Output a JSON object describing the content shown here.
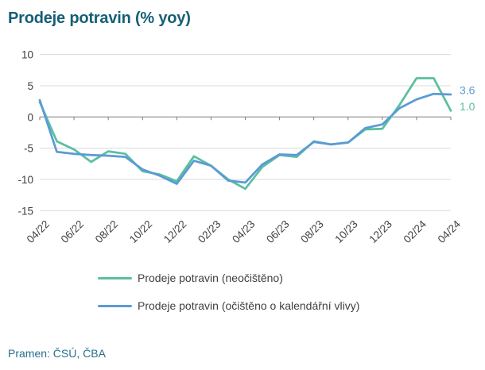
{
  "title": "Prodeje potravin (% yoy)",
  "source": "Pramen: ČSÚ, ČBA",
  "colors": {
    "title": "#155F76",
    "source": "#27708C",
    "green": "#5BBFA0",
    "blue": "#5B9BD5",
    "gridline": "#D9D9D9",
    "axis": "#7F7F7F",
    "tick_label": "#404040"
  },
  "legend": {
    "items": [
      {
        "label": "Prodeje potravin (neočištěno)",
        "color_key": "green"
      },
      {
        "label": "Prodeje potravin (očištěno o kalendářní vlivy)",
        "color_key": "blue"
      }
    ]
  },
  "chart_data": {
    "type": "line",
    "title": "Prodeje potravin (% yoy)",
    "x": [
      "04/22",
      "05/22",
      "06/22",
      "07/22",
      "08/22",
      "09/22",
      "10/22",
      "11/22",
      "12/22",
      "01/23",
      "02/23",
      "03/23",
      "04/23",
      "05/23",
      "06/23",
      "07/23",
      "08/23",
      "09/23",
      "10/23",
      "11/23",
      "12/23",
      "01/24",
      "02/24",
      "03/24",
      "04/24"
    ],
    "xtick_labels": [
      "04/22",
      "06/22",
      "08/22",
      "10/22",
      "12/22",
      "02/23",
      "04/23",
      "06/23",
      "08/23",
      "10/23",
      "12/23",
      "02/24",
      "04/24"
    ],
    "xtick_every": 2,
    "yticks": [
      10,
      5,
      0,
      -5,
      -10,
      -15
    ],
    "ylim": [
      -15,
      10
    ],
    "grid": true,
    "legend_position": "bottom",
    "series": [
      {
        "name": "Prodeje potravin (neočištěno)",
        "color_key": "green",
        "end_label": "1.0",
        "values": [
          2.4,
          -3.9,
          -5.2,
          -7.2,
          -5.5,
          -5.9,
          -8.7,
          -9.2,
          -10.3,
          -6.3,
          -7.8,
          -10.0,
          -11.5,
          -8.0,
          -6.1,
          -6.4,
          -3.9,
          -4.4,
          -4.1,
          -2.0,
          -1.9,
          1.9,
          6.2,
          6.2,
          1.0
        ]
      },
      {
        "name": "Prodeje potravin (očištěno o kalendářní vlivy)",
        "color_key": "blue",
        "end_label": "3.6",
        "values": [
          2.7,
          -5.6,
          -5.9,
          -6.1,
          -6.2,
          -6.4,
          -8.4,
          -9.4,
          -10.7,
          -7.0,
          -7.8,
          -10.2,
          -10.5,
          -7.6,
          -6.0,
          -6.1,
          -4.0,
          -4.4,
          -4.1,
          -1.8,
          -1.2,
          1.4,
          2.8,
          3.7,
          3.6
        ]
      }
    ]
  }
}
